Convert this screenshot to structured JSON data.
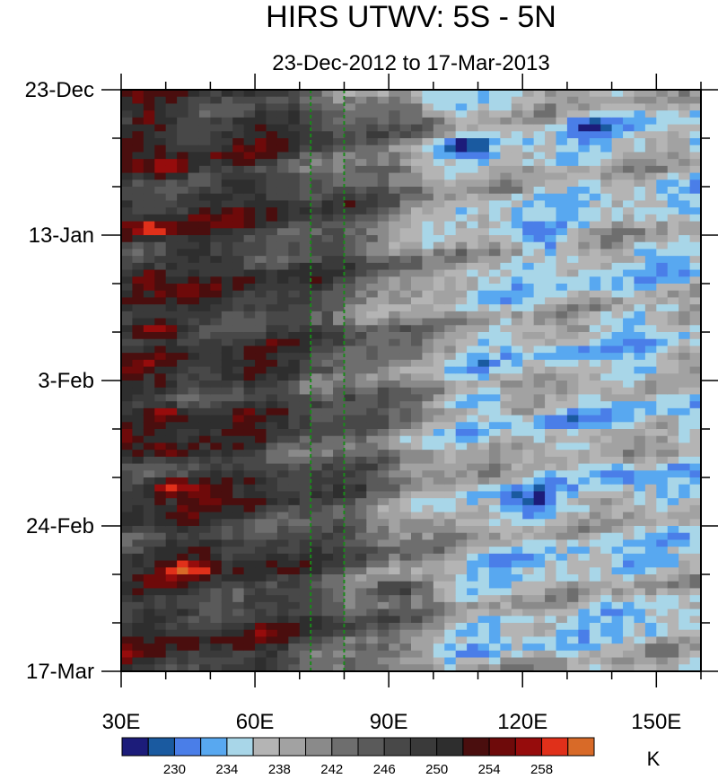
{
  "chart_data": {
    "type": "heatmap",
    "title": "HIRS UTWV: 5S - 5N",
    "subtitle": "23-Dec-2012 to 17-Mar-2013",
    "xlabel": "",
    "ylabel": "",
    "x_range": [
      30,
      160
    ],
    "y_range_days": [
      0,
      84
    ],
    "x_ticks": [
      {
        "value": 30,
        "label": "30E"
      },
      {
        "value": 60,
        "label": "60E"
      },
      {
        "value": 90,
        "label": "90E"
      },
      {
        "value": 120,
        "label": "120E"
      },
      {
        "value": 150,
        "label": "150E"
      }
    ],
    "y_ticks": [
      {
        "day": 0,
        "label": "23-Dec"
      },
      {
        "day": 21,
        "label": "13-Jan"
      },
      {
        "day": 42,
        "label": "3-Feb"
      },
      {
        "day": 63,
        "label": "24-Feb"
      },
      {
        "day": 84,
        "label": "17-Mar"
      }
    ],
    "reference_lines_lon": [
      72.5,
      80
    ],
    "colorbar": {
      "unit": "K",
      "levels": [
        226,
        228,
        230,
        232,
        234,
        236,
        238,
        240,
        242,
        244,
        246,
        248,
        250,
        252,
        254,
        256,
        258,
        260
      ],
      "colors": [
        "#1c1c7a",
        "#1a5aa0",
        "#4a7ee8",
        "#58a8f0",
        "#a8d6e8",
        "#b4b4b4",
        "#a2a2a2",
        "#8a8a8a",
        "#6e6e6e",
        "#5a5a5a",
        "#484848",
        "#3a3a3a",
        "#2e2e2e",
        "#4a0e0e",
        "#6e0a0a",
        "#960c0c",
        "#e0301a",
        "#d86a28"
      ],
      "tick_labels": [
        {
          "value": 230,
          "label": "230"
        },
        {
          "value": 234,
          "label": "234"
        },
        {
          "value": 238,
          "label": "238"
        },
        {
          "value": 242,
          "label": "242"
        },
        {
          "value": 246,
          "label": "246"
        },
        {
          "value": 250,
          "label": "250"
        },
        {
          "value": 254,
          "label": "254"
        },
        {
          "value": 258,
          "label": "258"
        }
      ]
    }
  }
}
